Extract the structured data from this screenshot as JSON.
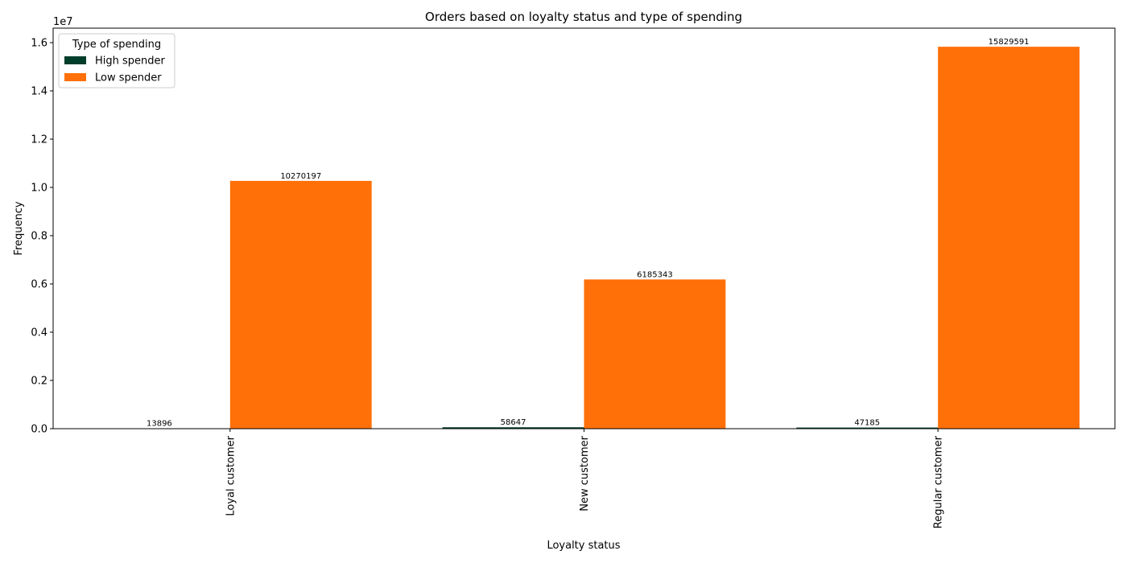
{
  "chart_data": {
    "type": "bar",
    "title": "Orders based on loyalty status and type of spending",
    "xlabel": "Loyalty status",
    "ylabel": "Frequency",
    "y_offset_text": "1e7",
    "categories": [
      "Loyal customer",
      "New customer",
      "Regular customer"
    ],
    "series": [
      {
        "name": "High spender",
        "color": "#003d2b",
        "values": [
          13896,
          58647,
          47185
        ]
      },
      {
        "name": "Low spender",
        "color": "#ff7008",
        "values": [
          10270197,
          6185343,
          15829591
        ]
      }
    ],
    "ylim": [
      0,
      16600000
    ],
    "yticks": [
      0,
      2000000,
      4000000,
      6000000,
      8000000,
      10000000,
      12000000,
      14000000,
      16000000
    ],
    "ytick_labels": [
      "0.0",
      "0.2",
      "0.4",
      "0.6",
      "0.8",
      "1.0",
      "1.2",
      "1.4",
      "1.6"
    ],
    "legend": {
      "title": "Type of spending",
      "position": "top-left"
    },
    "grid": false
  }
}
